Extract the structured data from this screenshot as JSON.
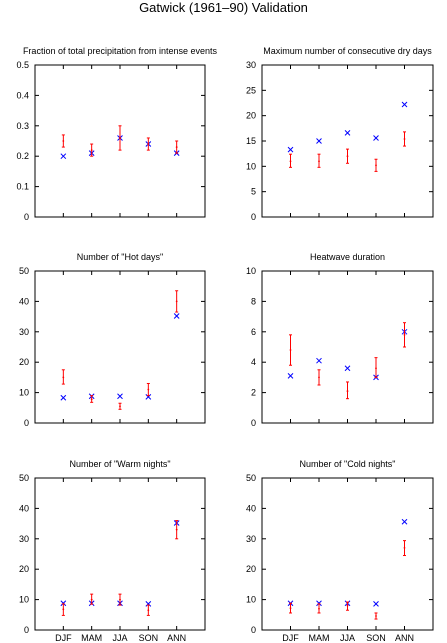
{
  "title": "Gatwick (1961–90) Validation",
  "colors": {
    "observed": "#0000ff",
    "model": "#ff0000",
    "axis": "#000000"
  },
  "legend_note": "",
  "chart_data": [
    {
      "type": "scatter",
      "title": "Fraction of total precipitation from intense events",
      "categories": [
        "DJF",
        "MAM",
        "JJA",
        "SON",
        "ANN"
      ],
      "show_category_labels": false,
      "ylim": [
        0,
        0.5
      ],
      "yticks": [
        0,
        0.1,
        0.2,
        0.3,
        0.4,
        0.5
      ],
      "ytick_labels": [
        "0",
        "0.1",
        "0.2",
        "0.3",
        "0.4",
        "0.5"
      ],
      "grid": false,
      "series": [
        {
          "marker": "cross",
          "color": "#0000ff",
          "values": [
            0.2,
            0.21,
            0.26,
            0.24,
            0.21
          ]
        },
        {
          "marker": "errorbar",
          "color": "#ff0000",
          "values": [
            0.25,
            0.22,
            0.26,
            0.24,
            0.23
          ],
          "low": [
            0.23,
            0.2,
            0.22,
            0.22,
            0.21
          ],
          "high": [
            0.27,
            0.24,
            0.3,
            0.26,
            0.25
          ]
        }
      ]
    },
    {
      "type": "scatter",
      "title": "Maximum number of consecutive dry days",
      "categories": [
        "DJF",
        "MAM",
        "JJA",
        "SON",
        "ANN"
      ],
      "show_category_labels": false,
      "ylim": [
        0,
        30
      ],
      "yticks": [
        0,
        5,
        10,
        15,
        20,
        25,
        30
      ],
      "ytick_labels": [
        "0",
        "5",
        "10",
        "15",
        "20",
        "25",
        "30"
      ],
      "grid": false,
      "series": [
        {
          "marker": "cross",
          "color": "#0000ff",
          "values": [
            13.3,
            15.0,
            16.6,
            15.6,
            22.2
          ]
        },
        {
          "marker": "errorbar",
          "color": "#ff0000",
          "values": [
            11.0,
            11.0,
            12.0,
            10.2,
            15.4
          ],
          "low": [
            9.8,
            9.8,
            10.6,
            9.0,
            14.0
          ],
          "high": [
            12.4,
            12.4,
            13.4,
            11.4,
            16.8
          ]
        }
      ]
    },
    {
      "type": "scatter",
      "title": "Number of \"Hot days\"",
      "categories": [
        "DJF",
        "MAM",
        "JJA",
        "SON",
        "ANN"
      ],
      "show_category_labels": false,
      "ylim": [
        0,
        50
      ],
      "yticks": [
        0,
        10,
        20,
        30,
        40,
        50
      ],
      "ytick_labels": [
        "0",
        "10",
        "20",
        "30",
        "40",
        "50"
      ],
      "grid": false,
      "series": [
        {
          "marker": "cross",
          "color": "#0000ff",
          "values": [
            8.3,
            8.8,
            8.8,
            8.6,
            35.2
          ]
        },
        {
          "marker": "errorbar",
          "color": "#ff0000",
          "values": [
            15.0,
            7.8,
            5.5,
            11.0,
            40.0
          ],
          "low": [
            12.8,
            6.8,
            4.5,
            9.0,
            36.5
          ],
          "high": [
            17.5,
            9.0,
            6.5,
            13.0,
            43.5
          ]
        }
      ]
    },
    {
      "type": "scatter",
      "title": "Heatwave duration",
      "categories": [
        "DJF",
        "MAM",
        "JJA",
        "SON",
        "ANN"
      ],
      "show_category_labels": false,
      "ylim": [
        0,
        10
      ],
      "yticks": [
        0,
        2,
        4,
        6,
        8,
        10
      ],
      "ytick_labels": [
        "0",
        "2",
        "4",
        "6",
        "8",
        "10"
      ],
      "grid": false,
      "series": [
        {
          "marker": "cross",
          "color": "#0000ff",
          "values": [
            3.1,
            4.1,
            3.6,
            3.0,
            6.0
          ]
        },
        {
          "marker": "errorbar",
          "color": "#ff0000",
          "values": [
            4.8,
            3.0,
            2.1,
            3.6,
            5.8
          ],
          "low": [
            3.8,
            2.5,
            1.6,
            3.0,
            5.0
          ],
          "high": [
            5.8,
            3.5,
            2.7,
            4.3,
            6.6
          ]
        }
      ]
    },
    {
      "type": "scatter",
      "title": "Number of \"Warm nights\"",
      "categories": [
        "DJF",
        "MAM",
        "JJA",
        "SON",
        "ANN"
      ],
      "show_category_labels": true,
      "ylim": [
        0,
        50
      ],
      "yticks": [
        0,
        10,
        20,
        30,
        40,
        50
      ],
      "ytick_labels": [
        "0",
        "10",
        "20",
        "30",
        "40",
        "50"
      ],
      "grid": false,
      "series": [
        {
          "marker": "cross",
          "color": "#0000ff",
          "values": [
            8.8,
            8.8,
            8.8,
            8.6,
            35.2
          ]
        },
        {
          "marker": "errorbar",
          "color": "#ff0000",
          "values": [
            6.8,
            10.0,
            10.0,
            6.5,
            33.0
          ],
          "low": [
            4.8,
            8.5,
            8.2,
            4.8,
            30.0
          ],
          "high": [
            8.6,
            11.8,
            11.8,
            8.2,
            36.0
          ]
        }
      ]
    },
    {
      "type": "scatter",
      "title": "Number of \"Cold nights\"",
      "categories": [
        "DJF",
        "MAM",
        "JJA",
        "SON",
        "ANN"
      ],
      "show_category_labels": true,
      "ylim": [
        0,
        50
      ],
      "yticks": [
        0,
        10,
        20,
        30,
        40,
        50
      ],
      "ytick_labels": [
        "0",
        "10",
        "20",
        "30",
        "40",
        "50"
      ],
      "grid": false,
      "series": [
        {
          "marker": "cross",
          "color": "#0000ff",
          "values": [
            8.8,
            8.8,
            8.8,
            8.6,
            35.6
          ]
        },
        {
          "marker": "errorbar",
          "color": "#ff0000",
          "values": [
            7.2,
            7.0,
            8.0,
            4.6,
            27.0
          ],
          "low": [
            5.6,
            5.6,
            6.5,
            3.6,
            24.5
          ],
          "high": [
            8.8,
            8.6,
            9.2,
            5.6,
            29.4
          ]
        }
      ]
    }
  ]
}
